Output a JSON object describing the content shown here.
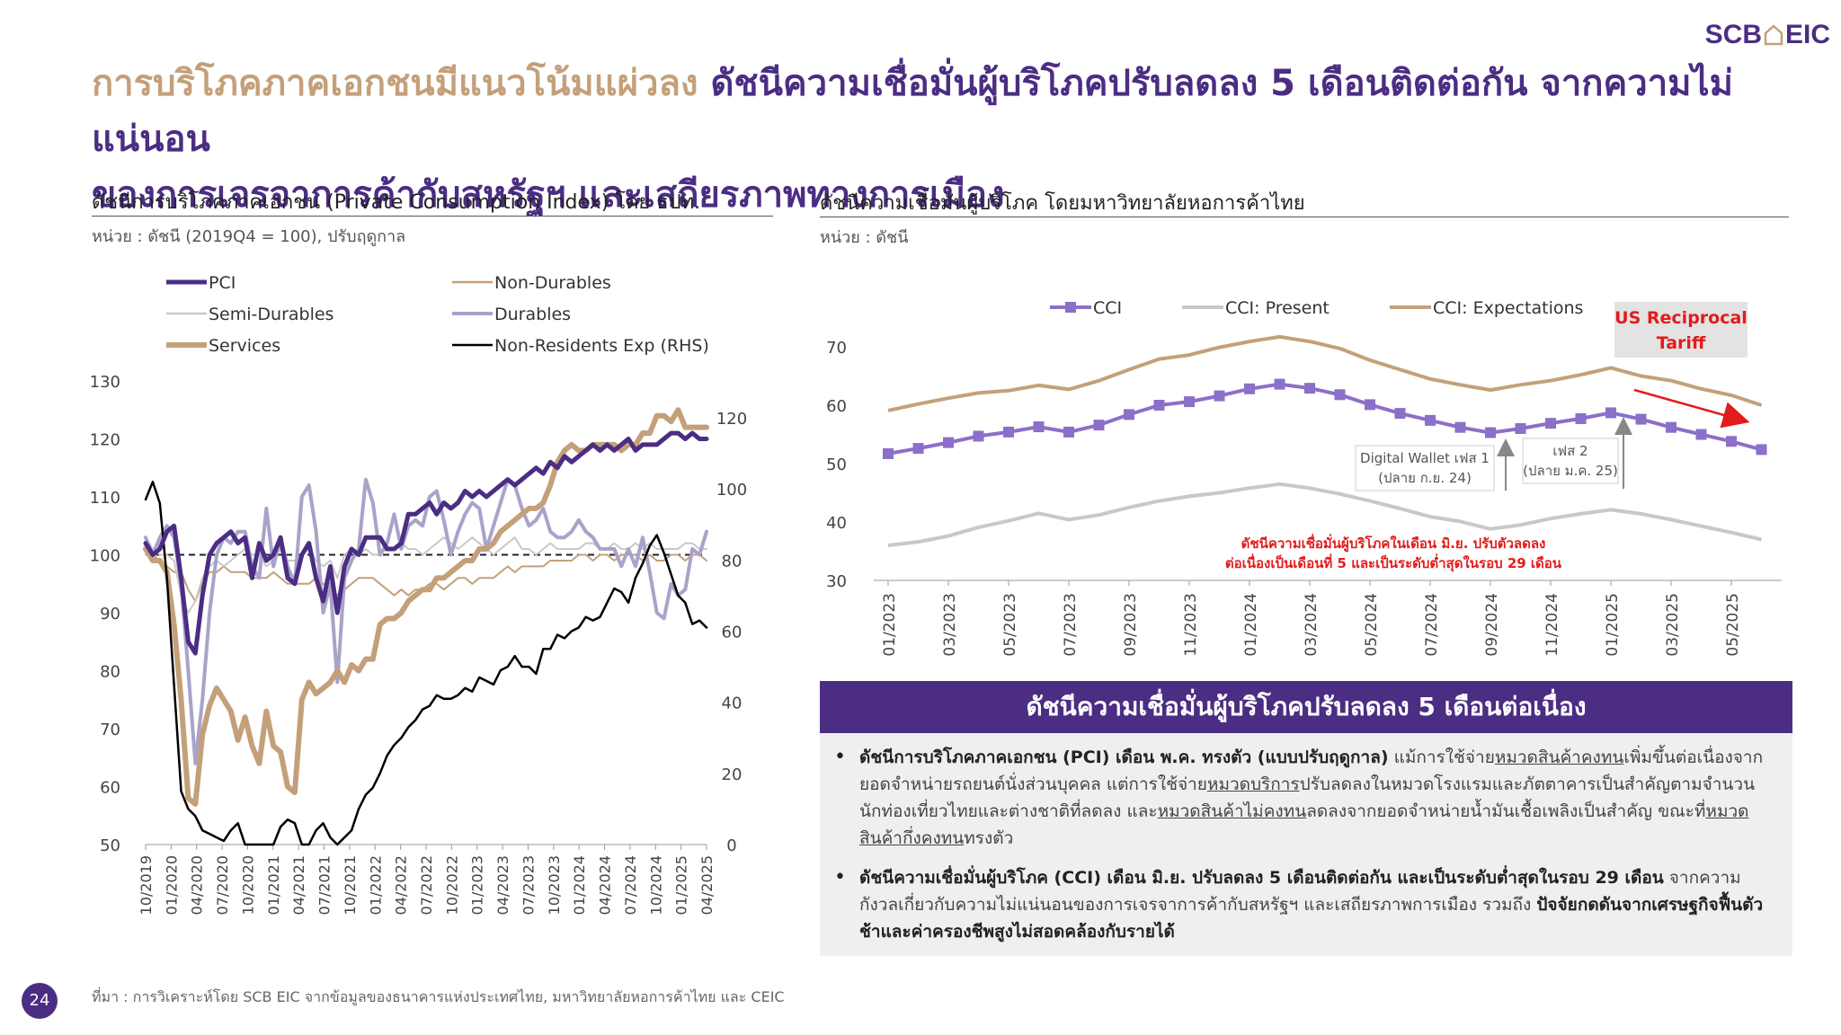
{
  "logo": {
    "left": "SCB",
    "right": "EIC"
  },
  "headline": {
    "part1": "การบริโภคภาคเอกชนมีแนวโน้มแผ่วลง",
    "part2": "ดัชนีความเชื่อมั่นผู้บริโภคปรับลดลง 5 เดือนติดต่อกัน จากความไม่แน่นอน",
    "part3": "ของการเจรจาการค้ากับสหรัฐฯ และเสถียรภาพทางการเมือง"
  },
  "left_chart": {
    "title": "ดัชนีการบริโภคภาคเอกชน (Private Consumption Index) โดย ธปท.",
    "unit": "หน่วย : ดัชนี (2019Q4 = 100), ปรับฤดูกาล"
  },
  "right_chart": {
    "title": "ดัชนีความเชื่อมั่นผู้บริโภค โดยมหาวิทยาลัยหอการค้าไทย",
    "unit": "หน่วย : ดัชนี"
  },
  "colors": {
    "purple": "#4B2D83",
    "tan": "#C4A07A",
    "gray": "#C8C8C8",
    "lavender": "#A9A3C9",
    "black": "#000000",
    "cci": "#8B6FC9",
    "red": "#E41B1B"
  },
  "chart_data": [
    {
      "type": "line",
      "yleft_lim": [
        50,
        130
      ],
      "yleft_ticks": [
        "50",
        "60",
        "70",
        "80",
        "90",
        "100",
        "110",
        "120",
        "130"
      ],
      "yright_lim": [
        0,
        120
      ],
      "yright_ticks": [
        "0",
        "20",
        "40",
        "60",
        "80",
        "100",
        "120"
      ],
      "reference_line": 100,
      "x_ticks": [
        "10/2019",
        "01/2020",
        "04/2020",
        "07/2020",
        "10/2020",
        "01/2021",
        "04/2021",
        "07/2021",
        "10/2021",
        "01/2022",
        "04/2022",
        "07/2022",
        "10/2022",
        "01/2023",
        "04/2023",
        "07/2023",
        "10/2023",
        "01/2024",
        "04/2024",
        "07/2024",
        "10/2024",
        "01/2025",
        "04/2025"
      ],
      "legend": [
        {
          "name": "PCI",
          "key": "pci"
        },
        {
          "name": "Non-Durables",
          "key": "nondur"
        },
        {
          "name": "Semi-Durables",
          "key": "semi"
        },
        {
          "name": "Durables",
          "key": "dur"
        },
        {
          "name": "Services",
          "key": "serv"
        },
        {
          "name": "Non-Residents Exp (RHS)",
          "key": "nonres"
        }
      ],
      "series": [
        {
          "name": "PCI",
          "key": "pci",
          "axis": "left",
          "color": "#4B2D83",
          "width": 5,
          "values": [
            102,
            100,
            101,
            104,
            105,
            96,
            85,
            83,
            93,
            100,
            102,
            103,
            104,
            102,
            103,
            96,
            102,
            99,
            100,
            103,
            96,
            95,
            100,
            102,
            96,
            92,
            98,
            90,
            98,
            101,
            100,
            103,
            103,
            103,
            101,
            101,
            102,
            107,
            107,
            108,
            109,
            107,
            109,
            108,
            109,
            111,
            110,
            111,
            110,
            111,
            112,
            113,
            112,
            113,
            114,
            115,
            114,
            116,
            115,
            117,
            116,
            117,
            118,
            119,
            118,
            119,
            118,
            119,
            120,
            118,
            119,
            119,
            119,
            120,
            121,
            121,
            120,
            121,
            120,
            120
          ]
        },
        {
          "name": "Non-Durables",
          "key": "nondur",
          "axis": "left",
          "color": "#C4A07A",
          "width": 2,
          "values": [
            100,
            100,
            99,
            98,
            97,
            97,
            94,
            92,
            95,
            97,
            97,
            98,
            97,
            97,
            97,
            96,
            96,
            96,
            97,
            96,
            95,
            95,
            95,
            95,
            96,
            95,
            94,
            93,
            94,
            95,
            96,
            96,
            96,
            95,
            94,
            93,
            94,
            93,
            94,
            94,
            95,
            95,
            94,
            95,
            96,
            96,
            95,
            96,
            96,
            96,
            97,
            98,
            97,
            98,
            98,
            98,
            98,
            99,
            99,
            99,
            99,
            100,
            100,
            99,
            100,
            100,
            99,
            100,
            100,
            100,
            99,
            100,
            99,
            99,
            100,
            100,
            99,
            100,
            100,
            99
          ]
        },
        {
          "name": "Semi-Durables",
          "key": "semi",
          "axis": "left",
          "color": "#C8C8C8",
          "width": 2,
          "values": [
            103,
            101,
            100,
            100,
            99,
            93,
            90,
            92,
            96,
            98,
            99,
            98,
            99,
            100,
            101,
            100,
            100,
            98,
            99,
            101,
            99,
            99,
            100,
            101,
            99,
            98,
            99,
            96,
            100,
            101,
            100,
            101,
            100,
            100,
            101,
            101,
            102,
            101,
            101,
            100,
            101,
            102,
            103,
            102,
            101,
            102,
            103,
            102,
            101,
            100,
            101,
            102,
            103,
            101,
            101,
            100,
            101,
            102,
            101,
            101,
            101,
            101,
            102,
            102,
            101,
            101,
            102,
            101,
            101,
            102,
            101,
            102,
            101,
            101,
            101,
            101,
            102,
            102,
            101,
            101
          ]
        },
        {
          "name": "Durables",
          "key": "dur",
          "axis": "left",
          "color": "#A9A3C9",
          "width": 4,
          "values": [
            103,
            100,
            103,
            105,
            103,
            95,
            80,
            64,
            75,
            90,
            100,
            103,
            102,
            104,
            104,
            98,
            96,
            108,
            98,
            103,
            98,
            95,
            110,
            112,
            104,
            90,
            95,
            78,
            96,
            99,
            101,
            113,
            109,
            100,
            102,
            107,
            101,
            105,
            106,
            105,
            110,
            111,
            106,
            100,
            104,
            107,
            109,
            108,
            101,
            105,
            109,
            113,
            112,
            108,
            105,
            106,
            108,
            104,
            103,
            103,
            104,
            106,
            104,
            103,
            101,
            101,
            101,
            98,
            101,
            98,
            103,
            97,
            90,
            89,
            95,
            93,
            94,
            101,
            100,
            104
          ]
        },
        {
          "name": "Services",
          "key": "serv",
          "axis": "left",
          "color": "#C4A07A",
          "width": 6,
          "values": [
            101,
            99,
            99,
            97,
            88,
            75,
            58,
            57,
            69,
            74,
            77,
            75,
            73,
            68,
            72,
            67,
            64,
            73,
            67,
            66,
            60,
            59,
            75,
            78,
            76,
            77,
            78,
            80,
            78,
            81,
            80,
            82,
            82,
            88,
            89,
            89,
            90,
            92,
            93,
            94,
            94,
            96,
            96,
            97,
            98,
            99,
            99,
            101,
            101,
            102,
            104,
            105,
            106,
            107,
            108,
            108,
            109,
            112,
            116,
            118,
            119,
            118,
            118,
            119,
            119,
            119,
            119,
            118,
            119,
            119,
            121,
            121,
            124,
            124,
            123,
            125,
            122,
            122,
            122,
            122
          ]
        },
        {
          "name": "Non-Residents Exp (RHS)",
          "key": "nonres",
          "axis": "right",
          "color": "#000000",
          "width": 2.5,
          "values": [
            97,
            102,
            96,
            75,
            45,
            15,
            10,
            8,
            4,
            3,
            2,
            1,
            4,
            6,
            0,
            0,
            0,
            0,
            0,
            5,
            7,
            6,
            0,
            0,
            4,
            6,
            2,
            0,
            2,
            4,
            10,
            14,
            16,
            20,
            25,
            28,
            30,
            33,
            35,
            38,
            39,
            42,
            41,
            41,
            42,
            44,
            43,
            47,
            46,
            45,
            49,
            50,
            53,
            50,
            50,
            48,
            55,
            55,
            59,
            58,
            60,
            61,
            64,
            63,
            64,
            68,
            72,
            71,
            68,
            75,
            79,
            84,
            87,
            82,
            76,
            70,
            68,
            62,
            63,
            61
          ]
        }
      ]
    },
    {
      "type": "line",
      "ylim": [
        30,
        70
      ],
      "y_ticks": [
        "30",
        "40",
        "50",
        "60",
        "70"
      ],
      "x": [
        "01/2023",
        "02/2023",
        "03/2023",
        "04/2023",
        "05/2023",
        "06/2023",
        "07/2023",
        "08/2023",
        "09/2023",
        "10/2023",
        "11/2023",
        "12/2023",
        "01/2024",
        "02/2024",
        "03/2024",
        "04/2024",
        "05/2024",
        "06/2024",
        "07/2024",
        "08/2024",
        "09/2024",
        "10/2024",
        "11/2024",
        "12/2024",
        "01/2025",
        "02/2025",
        "03/2025",
        "04/2025",
        "05/2025",
        "06/2025"
      ],
      "x_ticks": [
        "01/2023",
        "03/2023",
        "05/2023",
        "07/2023",
        "09/2023",
        "11/2023",
        "01/2024",
        "03/2024",
        "05/2024",
        "07/2024",
        "09/2024",
        "11/2024",
        "01/2025",
        "03/2025",
        "05/2025"
      ],
      "legend": [
        {
          "name": "CCI",
          "key": "cci"
        },
        {
          "name": "CCI: Present",
          "key": "present"
        },
        {
          "name": "CCI: Expectations",
          "key": "expect"
        }
      ],
      "series": [
        {
          "name": "CCI",
          "key": "cci",
          "color": "#8B6FC9",
          "marker": "square",
          "values": [
            51.7,
            52.6,
            53.6,
            54.7,
            55.4,
            56.3,
            55.4,
            56.6,
            58.4,
            60.0,
            60.6,
            61.6,
            62.8,
            63.6,
            62.9,
            61.8,
            60.1,
            58.6,
            57.4,
            56.2,
            55.3,
            56.0,
            56.9,
            57.7,
            58.7,
            57.6,
            56.2,
            55.0,
            53.8,
            52.4
          ]
        },
        {
          "name": "CCI: Present",
          "key": "present",
          "color": "#C8C8C8",
          "marker": "none",
          "values": [
            36.0,
            36.6,
            37.6,
            39.1,
            40.2,
            41.5,
            40.4,
            41.2,
            42.5,
            43.6,
            44.4,
            45.0,
            45.8,
            46.5,
            45.8,
            44.8,
            43.6,
            42.3,
            40.9,
            40.1,
            38.8,
            39.5,
            40.6,
            41.4,
            42.1,
            41.4,
            40.4,
            39.3,
            38.2,
            37.0
          ]
        },
        {
          "name": "CCI: Expectations",
          "key": "expect",
          "color": "#C4A07A",
          "marker": "none",
          "values": [
            59.1,
            60.2,
            61.2,
            62.1,
            62.5,
            63.4,
            62.7,
            64.2,
            66.1,
            67.9,
            68.6,
            69.9,
            70.9,
            71.7,
            70.9,
            69.7,
            67.7,
            66.1,
            64.5,
            63.5,
            62.6,
            63.5,
            64.2,
            65.2,
            66.4,
            65.0,
            64.2,
            62.8,
            61.7,
            60.0
          ]
        }
      ],
      "annotations": {
        "tariff_line1": "US Reciprocal",
        "tariff_line2": "Tariff",
        "wallet1_line1": "Digital Wallet เฟส 1",
        "wallet1_line2": "(ปลาย ก.ย. 24)",
        "wallet2_line1": "เฟส 2",
        "wallet2_line2": "(ปลาย ม.ค. 25)",
        "note_line1": "ดัชนีความเชื่อมั่นผู้บริโภคในเดือน มิ.ย. ปรับตัวลดลง",
        "note_line2": "ต่อเนื่องเป็นเดือนที่ 5 และเป็นระดับต่ำสุดในรอบ 29 เดือน"
      }
    }
  ],
  "panel": {
    "header": "ดัชนีความเชื่อมั่นผู้บริโภคปรับลดลง 5 เดือนต่อเนื่อง",
    "bullet1": {
      "bold": "ดัชนีการบริโภคภาคเอกชน (PCI) เดือน พ.ค. ทรงตัว (แบบปรับฤดูกาล)",
      "t1": " แม้การใช้จ่าย",
      "u1": "หมวดสินค้าคงทน",
      "t2": "เพิ่มขึ้นต่อเนื่องจากยอดจำหน่ายรถยนต์นั่งส่วนบุคคล แต่การใช้จ่าย",
      "u2": "หมวดบริการ",
      "t3": "ปรับลดลงในหมวดโรงแรมและภัตตาคารเป็นสำคัญตามจำนวนนักท่องเที่ยวไทยและต่างชาติที่ลดลง และ",
      "u3": "หมวดสินค้าไม่คงทน",
      "t4": "ลดลงจากยอดจำหน่ายน้ำมันเชื้อเพลิงเป็นสำคัญ ขณะที่",
      "u4": "หมวดสินค้ากึ่งคงทน",
      "t5": "ทรงตัว"
    },
    "bullet2": {
      "bold1": "ดัชนีความเชื่อมั่นผู้บริโภค (CCI) เดือน มิ.ย. ปรับลดลง 5 เดือนติดต่อกัน และเป็นระดับต่ำสุดในรอบ 29 เดือน",
      "t1": " จากความกังวลเกี่ยวกับความไม่แน่นอนของการเจรจาการค้ากับสหรัฐฯ และเสถียรภาพการเมือง รวมถึง ",
      "bold2": "ปัจจัยกดดันจากเศรษฐกิจฟื้นตัวช้าและค่าครองชีพสูงไม่สอดคล้องกับรายได้"
    }
  },
  "footer": {
    "page": "24",
    "source": "ที่มา : การวิเคราะห์โดย SCB EIC จากข้อมูลของธนาคารแห่งประเทศไทย, มหาวิทยาลัยหอการค้าไทย และ CEIC"
  }
}
